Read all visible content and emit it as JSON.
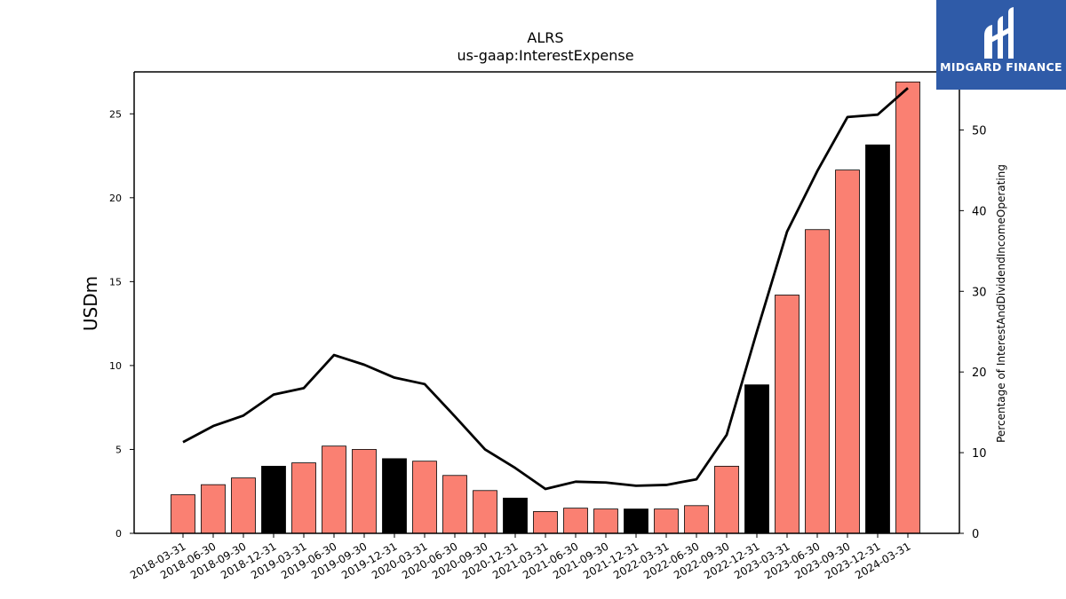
{
  "chart_data": {
    "type": "bar",
    "title": "ALRS",
    "subtitle": "us-gaap:InterestExpense",
    "ylabel": "USDm",
    "y2label": "Percentage of InterestAndDividendIncomeOperating",
    "ylim": [
      0,
      27.5
    ],
    "y2lim": [
      0,
      57.2
    ],
    "yticks": [
      0,
      5,
      10,
      15,
      20,
      25
    ],
    "y2ticks": [
      0,
      10,
      20,
      30,
      40,
      50
    ],
    "categories": [
      "2018-03-31",
      "2018-06-30",
      "2018-09-30",
      "2018-12-31",
      "2019-03-31",
      "2019-06-30",
      "2019-09-30",
      "2019-12-31",
      "2020-03-31",
      "2020-06-30",
      "2020-09-30",
      "2020-12-31",
      "2021-03-31",
      "2021-06-30",
      "2021-09-30",
      "2021-12-31",
      "2022-03-31",
      "2022-06-30",
      "2022-09-30",
      "2022-12-31",
      "2023-03-31",
      "2023-06-30",
      "2023-09-30",
      "2023-12-31",
      "2024-03-31"
    ],
    "values": [
      2.3,
      2.9,
      3.3,
      4.0,
      4.2,
      5.2,
      5.0,
      4.45,
      4.3,
      3.45,
      2.55,
      2.1,
      1.3,
      1.5,
      1.45,
      1.45,
      1.45,
      1.65,
      4.0,
      8.85,
      14.2,
      18.1,
      21.65,
      23.15,
      26.9
    ],
    "bar_colors": [
      "#fa8072",
      "#fa8072",
      "#fa8072",
      "#000000",
      "#fa8072",
      "#fa8072",
      "#fa8072",
      "#000000",
      "#fa8072",
      "#fa8072",
      "#fa8072",
      "#000000",
      "#fa8072",
      "#fa8072",
      "#fa8072",
      "#000000",
      "#fa8072",
      "#fa8072",
      "#fa8072",
      "#000000",
      "#fa8072",
      "#fa8072",
      "#fa8072",
      "#000000",
      "#fa8072"
    ],
    "line_values": [
      11.3,
      13.3,
      14.6,
      17.2,
      18.0,
      22.1,
      20.9,
      19.3,
      18.5,
      14.5,
      10.4,
      8.1,
      5.5,
      6.4,
      6.3,
      5.9,
      6.0,
      6.7,
      12.2,
      25.0,
      37.4,
      44.9,
      51.6,
      51.9,
      55.2
    ],
    "line_color": "#000000",
    "grid": false
  },
  "logo": {
    "text": "MIDGARD FINANCE",
    "bg_color": "#2f5ba8"
  }
}
